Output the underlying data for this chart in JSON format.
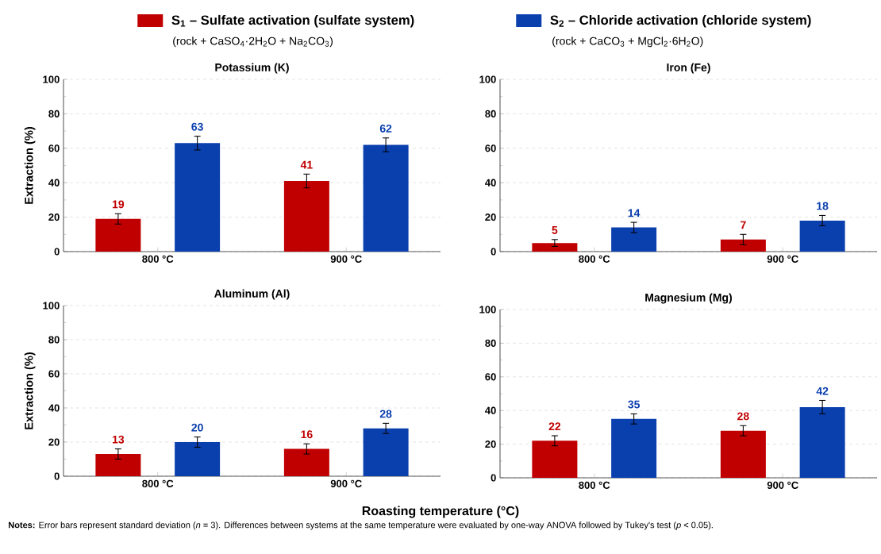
{
  "chart_data": [
    {
      "type": "bar",
      "title": "Potassium (K)",
      "ylabel": "Extraction (%)",
      "categories": [
        "800 °C",
        "900 °C"
      ],
      "series": [
        {
          "name": "S$_{1}$ – Sulfate activation (sulfate system)",
          "color": "#c00000",
          "values": [
            19,
            41
          ],
          "errors": [
            3,
            4
          ]
        },
        {
          "name": "S$_{2}$ – Chloride activation (chloride system)",
          "color": "#0a3fae",
          "values": [
            63,
            62
          ],
          "errors": [
            4,
            4
          ]
        }
      ],
      "ylim": [
        0,
        100
      ],
      "yticks": [
        0,
        20,
        40,
        60,
        80,
        100
      ],
      "grid": "y",
      "data_labels": true,
      "legend": "top",
      "annotations": [
        "(rock + CaSO$_{4}$·2H$_{2}$O + Na$_{2}$CO$_{3}$)",
        "(rock + CaCO$_{3}$ + MgCl$_{2}$·6H$_{2}$O)"
      ]
    },
    {
      "type": "bar",
      "title": "Iron (Fe)",
      "categories": [
        "800 °C",
        "900 °C"
      ],
      "series": [
        {
          "color": "#c00000",
          "values": [
            5,
            7
          ],
          "errors": [
            2,
            3
          ]
        },
        {
          "color": "#0a3fae",
          "values": [
            14,
            18
          ],
          "errors": [
            3,
            3
          ]
        }
      ],
      "ylim": [
        0,
        100
      ],
      "yticks": [
        0,
        20,
        40,
        60,
        80,
        100
      ],
      "grid": "y",
      "data_labels": true
    },
    {
      "type": "bar",
      "title": "Aluminum (Al)",
      "ylabel": "Extraction (%)",
      "xlabel": "Roasting temperature (°C)",
      "categories": [
        "800 °C",
        "900 °C"
      ],
      "series": [
        {
          "color": "#c00000",
          "values": [
            13,
            16
          ],
          "errors": [
            3,
            3
          ]
        },
        {
          "color": "#0a3fae",
          "values": [
            20,
            28
          ],
          "errors": [
            3,
            3
          ]
        }
      ],
      "ylim": [
        0,
        100
      ],
      "yticks": [
        0,
        20,
        40,
        60,
        80,
        100
      ],
      "grid": "y",
      "data_labels": true,
      "annotations": [
        "**Notes:** Error bars represent standard deviation (*n* = 3). Differences between systems at the same temperature were evaluated by one-way ANOVA followed by Tukey's test (*p* < 0.05)."
      ]
    },
    {
      "type": "bar",
      "title": "Magnesium (Mg)",
      "categories": [
        "800 °C",
        "900 °C"
      ],
      "series": [
        {
          "color": "#c00000",
          "values": [
            22,
            28
          ],
          "errors": [
            3,
            3
          ]
        },
        {
          "color": "#0a3fae",
          "values": [
            35,
            42
          ],
          "errors": [
            3,
            4
          ]
        }
      ],
      "ylim": [
        0,
        100
      ],
      "yticks": [
        0,
        20,
        40,
        60,
        80,
        100
      ],
      "grid": "y",
      "data_labels": true
    }
  ]
}
